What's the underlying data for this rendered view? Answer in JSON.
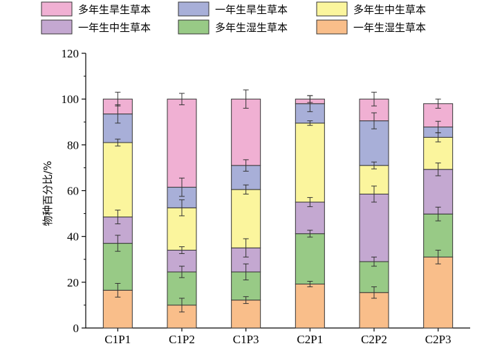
{
  "chart_data": {
    "type": "bar",
    "stacked": true,
    "ylabel": "物种百分比/%",
    "xlabel": "",
    "ylim": [
      0,
      120
    ],
    "yticks": [
      0,
      20,
      40,
      60,
      80,
      100,
      120
    ],
    "grid": false,
    "legend_position": "top",
    "categories": [
      "C1P1",
      "C1P2",
      "C1P3",
      "C2P1",
      "C2P2",
      "C2P3"
    ],
    "series": [
      {
        "name": "一年生湿生草本",
        "color": "#F9BE8A",
        "values": [
          16.5,
          10.0,
          12.2,
          19.2,
          15.5,
          31.0
        ],
        "errors": [
          3.0,
          3.0,
          1.5,
          1.2,
          2.5,
          3.0
        ]
      },
      {
        "name": "多年生湿生草本",
        "color": "#98CA86",
        "values": [
          20.5,
          14.5,
          12.3,
          22.0,
          13.5,
          18.8
        ],
        "errors": [
          3.5,
          2.5,
          3.5,
          1.5,
          2.0,
          3.0
        ]
      },
      {
        "name": "一年生中生草本",
        "color": "#C4A8D1",
        "values": [
          11.5,
          9.5,
          10.5,
          13.8,
          29.5,
          19.5
        ],
        "errors": [
          3.0,
          1.5,
          4.0,
          2.0,
          3.5,
          2.8
        ]
      },
      {
        "name": "多年生中生草本",
        "color": "#FBF59D",
        "values": [
          32.5,
          18.5,
          25.5,
          34.5,
          12.5,
          14.0
        ],
        "errors": [
          1.5,
          3.5,
          2.0,
          1.0,
          1.5,
          2.0
        ]
      },
      {
        "name": "一年生旱生草本",
        "color": "#A8AFD8",
        "values": [
          12.5,
          9.0,
          10.5,
          8.5,
          19.5,
          4.5
        ],
        "errors": [
          4.0,
          4.0,
          2.5,
          3.5,
          3.5,
          2.5
        ]
      },
      {
        "name": "多年生旱生草本",
        "color": "#F0B0D3",
        "values": [
          6.5,
          38.5,
          29.0,
          2.0,
          9.5,
          10.2
        ],
        "errors": [
          3.0,
          2.5,
          4.0,
          1.5,
          3.0,
          2.0
        ]
      }
    ]
  }
}
